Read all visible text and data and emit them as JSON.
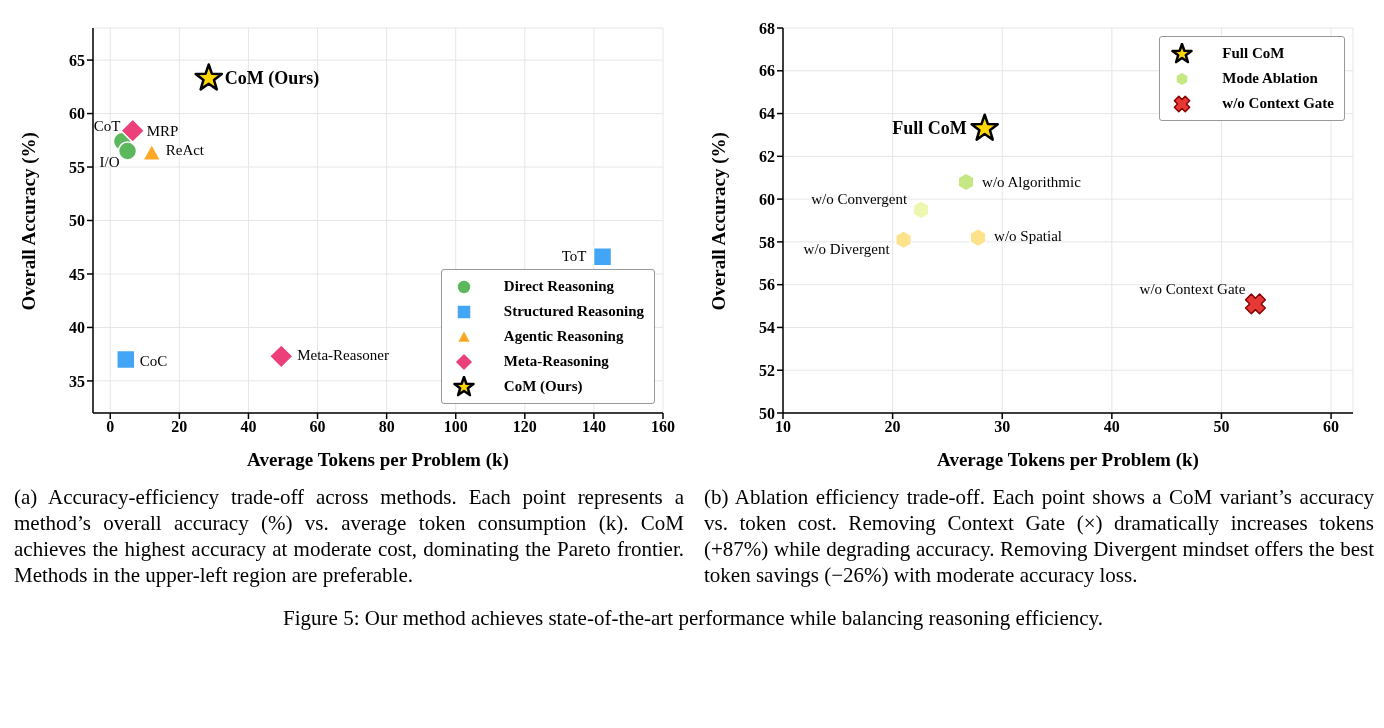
{
  "chart_data": [
    {
      "type": "scatter",
      "xlabel": "Average Tokens per Problem (k)",
      "ylabel": "Overall Accuracy (%)",
      "xlim": [
        -5,
        160
      ],
      "xticks": [
        0,
        20,
        40,
        60,
        80,
        100,
        120,
        140,
        160
      ],
      "ylim": [
        32,
        68
      ],
      "yticks": [
        35,
        40,
        45,
        50,
        55,
        60,
        65
      ],
      "grid": true,
      "legend": "bottom right",
      "series": [
        {
          "name": "Direct Reasoning",
          "color": "#5cb85c",
          "marker": "circle",
          "x": [
            3.5,
            5
          ],
          "values": [
            57.4,
            56.5
          ]
        },
        {
          "name": "Structured Reasoning",
          "color": "#42a5f5",
          "marker": "square",
          "x": [
            142.5,
            4.5
          ],
          "values": [
            46.6,
            37
          ]
        },
        {
          "name": "Agentic Reasoning",
          "color": "#ffa726",
          "marker": "triangle",
          "x": [
            12
          ],
          "values": [
            56.3
          ]
        },
        {
          "name": "Meta-Reasoning",
          "color": "#ec407a",
          "marker": "diamond",
          "x": [
            6.5,
            49.5
          ],
          "values": [
            58.4,
            37.3
          ]
        },
        {
          "name": "CoM (Ours)",
          "color": "#ffd700",
          "marker": "star",
          "x": [
            28.5
          ],
          "values": [
            63.3
          ]
        }
      ],
      "annotations": [
        {
          "text": "CoM (Ours)",
          "x": 28.5,
          "y": 63.3
        },
        {
          "text": "CoT",
          "x": 3.5,
          "y": 57.4
        },
        {
          "text": "MRP",
          "x": 6.5,
          "y": 58.4
        },
        {
          "text": "I/O",
          "x": 5,
          "y": 56.5
        },
        {
          "text": "ReAct",
          "x": 12,
          "y": 56.3
        },
        {
          "text": "ToT",
          "x": 142.5,
          "y": 46.6
        },
        {
          "text": "CoC",
          "x": 4.5,
          "y": 37
        },
        {
          "text": "Meta-Reasoner",
          "x": 49.5,
          "y": 37.3
        },
        "(a) Accuracy-efficiency trade-off across methods. Each point represents a method’s overall accuracy (%) vs. average token consumption (k). CoM achieves the highest accuracy at moderate cost, dominating the Pareto frontier. Methods in the upper-left region are preferable."
      ]
    },
    {
      "type": "scatter",
      "xlabel": "Average Tokens per Problem (k)",
      "ylabel": "Overall Accuracy (%)",
      "xlim": [
        10,
        62
      ],
      "xticks": [
        10,
        20,
        30,
        40,
        50,
        60
      ],
      "ylim": [
        50,
        68
      ],
      "yticks": [
        50,
        52,
        54,
        56,
        58,
        60,
        62,
        64,
        66,
        68
      ],
      "grid": true,
      "legend": "top right",
      "series": [
        {
          "name": "Full CoM",
          "color": "#ffd700",
          "marker": "star",
          "x": [
            28.4
          ],
          "values": [
            63.3
          ]
        },
        {
          "name": "Mode Ablation",
          "color": "#c5e884",
          "colors": [
            "#c5e884",
            "#eef7b0",
            "#fde28c",
            "#fde28c"
          ],
          "x": [
            26.7,
            22.6,
            21,
            27.8
          ],
          "values": [
            60.8,
            59.5,
            58.1,
            58.2
          ]
        },
        {
          "name": "w/o Context Gate",
          "color": "#e53935",
          "marker": "cross",
          "x": [
            53.1
          ],
          "values": [
            55.1
          ]
        }
      ],
      "annotations": [
        {
          "text": "Full CoM",
          "x": 28.4,
          "y": 63.3
        },
        {
          "text": "w/o Algorithmic",
          "x": 26.7,
          "y": 60.8
        },
        {
          "text": "w/o Convergent",
          "x": 22.6,
          "y": 59.5
        },
        {
          "text": "w/o Divergent",
          "x": 21,
          "y": 58.1
        },
        {
          "text": "w/o Spatial",
          "x": 27.8,
          "y": 58.2
        },
        {
          "text": "w/o Context Gate",
          "x": 53.1,
          "y": 55.1
        },
        "(b) Ablation efficiency trade-off. Each point shows a CoM variant’s accuracy vs. token cost. Removing Context Gate (×) dramatically increases tokens (+87%) while degrading accuracy. Removing Divergent mindset offers the best token savings (−26%) with moderate accuracy loss.",
        "Figure 5: Our method achieves state-of-the-art performance while balancing reasoning efficiency."
      ]
    }
  ]
}
